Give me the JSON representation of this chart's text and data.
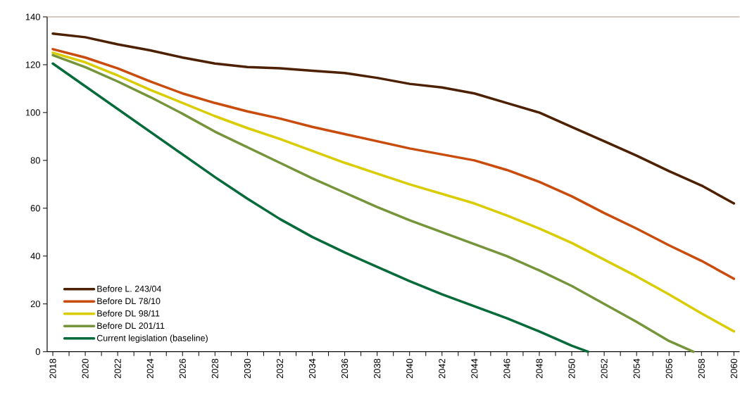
{
  "chart_data": {
    "type": "line",
    "xlim": [
      2017.65,
      2060.35
    ],
    "ylim": [
      0,
      140
    ],
    "yticks": [
      0,
      20,
      40,
      60,
      80,
      100,
      120,
      140
    ],
    "xticks": [
      2018,
      {
        "value": 2019,
        "label": null
      },
      2020,
      {
        "value": 2021,
        "label": null
      },
      2022,
      {
        "value": 2023,
        "label": null
      },
      2024,
      {
        "value": 2025,
        "label": null
      },
      2026,
      {
        "value": 2027,
        "label": null
      },
      2028,
      {
        "value": 2029,
        "label": null
      },
      2030,
      {
        "value": 2031,
        "label": null
      },
      2032,
      {
        "value": 2033,
        "label": null
      },
      2034,
      {
        "value": 2035,
        "label": null
      },
      2036,
      {
        "value": 2037,
        "label": null
      },
      2038,
      {
        "value": 2039,
        "label": null
      },
      2040,
      {
        "value": 2041,
        "label": null
      },
      2042,
      {
        "value": 2043,
        "label": null
      },
      2044,
      {
        "value": 2045,
        "label": null
      },
      2046,
      {
        "value": 2047,
        "label": null
      },
      2048,
      {
        "value": 2049,
        "label": null
      },
      2050,
      {
        "value": 2051,
        "label": null
      },
      2052,
      {
        "value": 2053,
        "label": null
      },
      2054,
      {
        "value": 2055,
        "label": null
      },
      2056,
      {
        "value": 2057,
        "label": null
      },
      2058,
      {
        "value": 2059,
        "label": null
      },
      2060
    ],
    "x": [
      2018,
      2020,
      2022,
      2024,
      2026,
      2028,
      2030,
      2032,
      2034,
      2036,
      2038,
      2040,
      2042,
      2044,
      2046,
      2048,
      2050,
      2052,
      2054,
      2056,
      2058,
      2060
    ],
    "legend": "bottom left",
    "grid": false,
    "series": [
      {
        "name": "Before L. 243/04",
        "color": "#4d2000",
        "values": [
          133,
          131.5,
          128.5,
          126,
          123,
          120.5,
          119,
          118.5,
          117.5,
          116.5,
          114.5,
          112,
          110.5,
          108,
          104,
          100,
          94,
          88,
          82,
          75.5,
          69.5,
          62
        ]
      },
      {
        "name": "Before DL 78/10",
        "color": "#c94c0c",
        "values": [
          126.5,
          123,
          118.5,
          113,
          108,
          104,
          100.5,
          97.5,
          94,
          91,
          88,
          85,
          82.5,
          80,
          76,
          71,
          65,
          58,
          51.5,
          44.5,
          38,
          30.5
        ]
      },
      {
        "name": "Before DL 98/11",
        "color": "#d9cc00",
        "values": [
          125,
          121,
          115.5,
          109.5,
          104,
          98.5,
          93.5,
          89,
          84,
          79,
          74.5,
          70,
          66,
          62,
          57,
          51.5,
          45.5,
          38.5,
          31.5,
          24,
          16,
          8.5
        ]
      },
      {
        "name": "Before DL 201/11",
        "color": "#76953a",
        "x": [
          2018,
          2020,
          2022,
          2024,
          2026,
          2028,
          2030,
          2032,
          2034,
          2036,
          2038,
          2040,
          2042,
          2044,
          2046,
          2048,
          2050,
          2052,
          2054,
          2056,
          2057.5
        ],
        "values": [
          124,
          119,
          113,
          106.5,
          99.5,
          92,
          85.5,
          79,
          72.5,
          66.5,
          60.5,
          55,
          50,
          45,
          40,
          34,
          27.5,
          20,
          12.5,
          4.5,
          0
        ]
      },
      {
        "name": "Current legislation  (baseline)",
        "color": "#056b3a",
        "x": [
          2018,
          2020,
          2022,
          2024,
          2026,
          2028,
          2030,
          2032,
          2034,
          2036,
          2038,
          2040,
          2042,
          2044,
          2046,
          2048,
          2050,
          2051
        ],
        "values": [
          120.5,
          111,
          101.5,
          92,
          82.5,
          73,
          64,
          55.5,
          48,
          41.5,
          35.5,
          29.5,
          24,
          19,
          14,
          8.5,
          2.5,
          0
        ]
      }
    ]
  }
}
